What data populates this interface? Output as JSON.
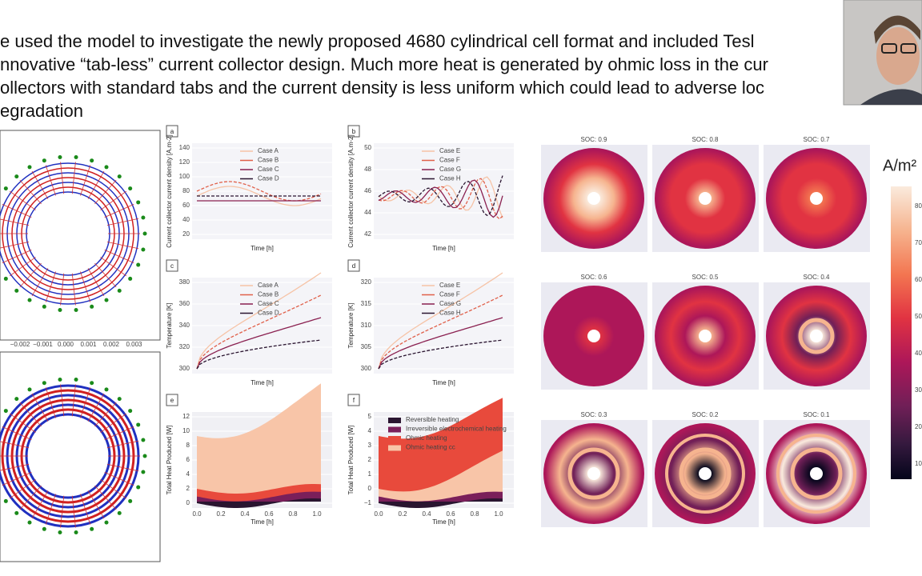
{
  "slide": {
    "text_lines": [
      "e used the model to investigate the newly proposed 4680 cylindrical cell format and included Tesl",
      "nnovative “tab-less” current collector design. Much more heat is generated by ohmic loss in the cur",
      "ollectors with standard tabs and the current density is less uniform which could lead to adverse loc",
      "egradation"
    ]
  },
  "spiral_panels": {
    "xticks": [
      "−0.002",
      "−0.001",
      "0.000",
      "0.001",
      "0.002",
      "0.003"
    ]
  },
  "panels": [
    {
      "label": "a",
      "ylabel": "Current collector current density [A.m-2]",
      "xlabel": "Time [h]",
      "yticks": [
        "140",
        "120",
        "100",
        "80",
        "60",
        "40",
        "20"
      ],
      "legend": [
        "Case A",
        "Case B",
        "Case C",
        "Case D"
      ]
    },
    {
      "label": "b",
      "ylabel": "Current collector current density [A.m-2]",
      "xlabel": "Time [h]",
      "yticks": [
        "50",
        "48",
        "46",
        "44",
        "42"
      ],
      "legend": [
        "Case E",
        "Case F",
        "Case G",
        "Case H"
      ]
    },
    {
      "label": "c",
      "ylabel": "Temperature [K]",
      "xlabel": "Time [h]",
      "yticks": [
        "380",
        "360",
        "340",
        "320",
        "300"
      ],
      "legend": [
        "Case A",
        "Case B",
        "Case C",
        "Case D"
      ]
    },
    {
      "label": "d",
      "ylabel": "Temperature [K]",
      "xlabel": "Time [h]",
      "yticks": [
        "320",
        "315",
        "310",
        "305",
        "300"
      ],
      "legend": [
        "Case E",
        "Case F",
        "Case G",
        "Case H"
      ]
    },
    {
      "label": "e",
      "ylabel": "Total Heat Produced [W]",
      "xlabel": "Time [h]",
      "yticks": [
        "12",
        "10",
        "8",
        "6",
        "4",
        "2",
        "0"
      ],
      "xticks": [
        "0.0",
        "0.2",
        "0.4",
        "0.6",
        "0.8",
        "1.0"
      ]
    },
    {
      "label": "f",
      "ylabel": "Total Heat Produced [W]",
      "xlabel": "Time [h]",
      "yticks": [
        "5",
        "4",
        "3",
        "2",
        "1",
        "0",
        "−1"
      ],
      "xticks": [
        "0.0",
        "0.2",
        "0.4",
        "0.6",
        "0.8",
        "1.0"
      ],
      "legend": [
        "Reversible heating",
        "Irreversible electrochemical heating",
        "Ohmic heating",
        "Ohmic heating cc"
      ]
    }
  ],
  "heatmaps": {
    "titles": [
      "SOC: 0.9",
      "SOC: 0.8",
      "SOC: 0.7",
      "SOC: 0.6",
      "SOC: 0.5",
      "SOC: 0.4",
      "SOC: 0.3",
      "SOC: 0.2",
      "SOC: 0.1"
    ]
  },
  "colorbar": {
    "label": "A/m²",
    "ticks": [
      "80",
      "70",
      "60",
      "50",
      "40",
      "30",
      "20",
      "10"
    ]
  }
}
